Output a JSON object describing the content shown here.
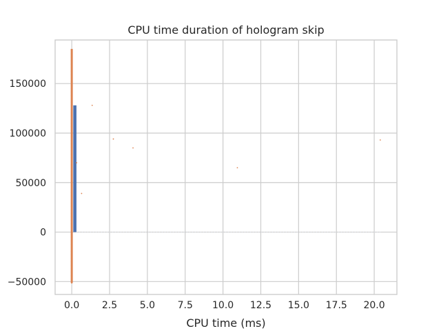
{
  "chart_data": {
    "type": "bar",
    "title": "CPU time duration of hologram skip",
    "xlabel": "CPU time (ms)",
    "ylabel": "",
    "xlim": [
      -1.1,
      21.5
    ],
    "ylim": [
      -63000,
      194000
    ],
    "xticks": [
      0.0,
      2.5,
      5.0,
      7.5,
      10.0,
      12.5,
      15.0,
      17.5,
      20.0
    ],
    "xtick_labels": [
      "0.0",
      "2.5",
      "5.0",
      "7.5",
      "10.0",
      "12.5",
      "15.0",
      "17.5",
      "20.0"
    ],
    "yticks": [
      -50000,
      0,
      50000,
      100000,
      150000
    ],
    "ytick_labels": [
      "−50000",
      "0",
      "50000",
      "100000",
      "150000"
    ],
    "grid": true,
    "series": [
      {
        "kind": "histogram",
        "color": "#4c72b0",
        "bins": [
          {
            "x0": -0.05,
            "x1": 0.04,
            "value": 163000
          },
          {
            "x0": 0.1,
            "x1": 0.31,
            "value": 128000
          },
          {
            "x0": 0.31,
            "x1": 20.5,
            "value": 0
          }
        ]
      },
      {
        "kind": "scatter",
        "color": "#dd8452",
        "spread_points": [
          {
            "x": 0.32,
            "y": 70000
          },
          {
            "x": 0.65,
            "y": 39000
          },
          {
            "x": 1.35,
            "y": 128000
          },
          {
            "x": 2.75,
            "y": 94000
          },
          {
            "x": 4.05,
            "y": 85000
          },
          {
            "x": 10.95,
            "y": 65000
          },
          {
            "x": 20.4,
            "y": 93000
          }
        ],
        "dense_column": {
          "x": 0.0,
          "y_min": -51000,
          "y_max": 185000
        }
      }
    ]
  }
}
